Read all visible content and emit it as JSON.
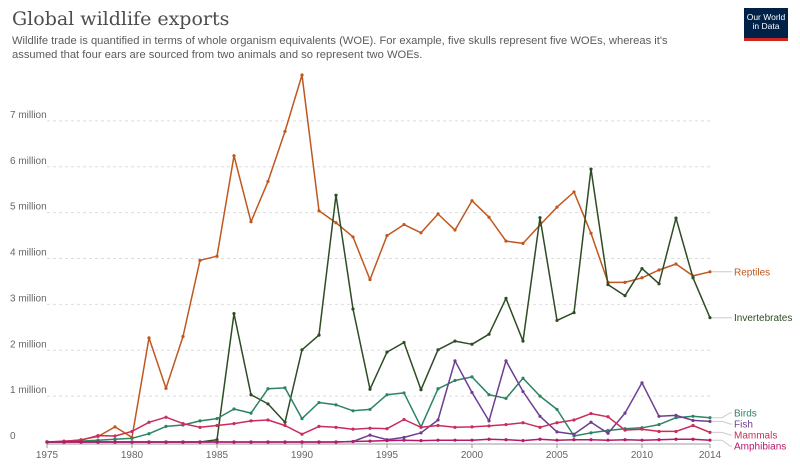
{
  "header": {
    "title": "Global wildlife exports",
    "subtitle": "Wildlife trade is quantified in terms of whole organism equivalents (WOE). For example, five skulls represent five WOEs, whereas it's assumed that four ears are sourced from two animals and so represent two WOEs.",
    "logo_line1": "Our World",
    "logo_line2": "in Data"
  },
  "chart_data": {
    "type": "line",
    "title": "Global wildlife exports",
    "xlabel": "",
    "ylabel": "",
    "xlim": [
      1975,
      2014
    ],
    "ylim": [
      0,
      8000000
    ],
    "x_ticks": [
      1975,
      1980,
      1985,
      1990,
      1995,
      2000,
      2005,
      2010,
      2014
    ],
    "y_ticks": [
      {
        "value": 0,
        "label": "0"
      },
      {
        "value": 1000000,
        "label": "1 million"
      },
      {
        "value": 2000000,
        "label": "2 million"
      },
      {
        "value": 3000000,
        "label": "3 million"
      },
      {
        "value": 4000000,
        "label": "4 million"
      },
      {
        "value": 5000000,
        "label": "5 million"
      },
      {
        "value": 6000000,
        "label": "6 million"
      },
      {
        "value": 7000000,
        "label": "7 million"
      }
    ],
    "grid": "horizontal dashed",
    "legend": "labels at right end of lines",
    "x": [
      1975,
      1976,
      1977,
      1978,
      1979,
      1980,
      1981,
      1982,
      1983,
      1984,
      1985,
      1986,
      1987,
      1988,
      1989,
      1990,
      1991,
      1992,
      1993,
      1994,
      1995,
      1996,
      1997,
      1998,
      1999,
      2000,
      2001,
      2002,
      2003,
      2004,
      2005,
      2006,
      2007,
      2008,
      2009,
      2010,
      2011,
      2012,
      2013,
      2014
    ],
    "series": [
      {
        "name": "Reptiles",
        "color": "#c0571e",
        "values": [
          0,
          10000,
          50000,
          120000,
          330000,
          100000,
          2270000,
          1170000,
          2300000,
          3960000,
          4050000,
          6240000,
          4800000,
          5680000,
          6770000,
          8000000,
          5040000,
          4780000,
          4470000,
          3540000,
          4500000,
          4740000,
          4560000,
          4970000,
          4620000,
          5260000,
          4900000,
          4380000,
          4330000,
          4730000,
          5120000,
          5450000,
          4550000,
          3480000,
          3480000,
          3580000,
          3750000,
          3880000,
          3620000,
          3710000
        ]
      },
      {
        "name": "Invertebrates",
        "color": "#2d4d24",
        "values": [
          0,
          0,
          0,
          0,
          0,
          0,
          0,
          0,
          0,
          0,
          50000,
          2800000,
          1030000,
          830000,
          430000,
          2010000,
          2330000,
          5380000,
          2900000,
          1150000,
          1960000,
          2170000,
          1140000,
          2010000,
          2200000,
          2130000,
          2350000,
          3130000,
          2200000,
          4890000,
          2650000,
          2820000,
          5950000,
          3430000,
          3190000,
          3780000,
          3450000,
          4880000,
          3580000,
          2710000
        ]
      },
      {
        "name": "Birds",
        "color": "#2c8465",
        "values": [
          0,
          0,
          20000,
          40000,
          60000,
          80000,
          180000,
          340000,
          370000,
          460000,
          510000,
          720000,
          630000,
          1160000,
          1180000,
          510000,
          860000,
          810000,
          680000,
          710000,
          1030000,
          1070000,
          330000,
          1160000,
          1340000,
          1420000,
          1030000,
          950000,
          1390000,
          1000000,
          710000,
          130000,
          200000,
          250000,
          290000,
          310000,
          380000,
          530000,
          560000,
          530000
        ]
      },
      {
        "name": "Fish",
        "color": "#6d3e91",
        "values": [
          0,
          0,
          0,
          0,
          0,
          0,
          0,
          0,
          0,
          0,
          0,
          0,
          0,
          0,
          0,
          0,
          0,
          0,
          10000,
          150000,
          50000,
          100000,
          200000,
          480000,
          1770000,
          1080000,
          460000,
          1770000,
          1100000,
          560000,
          220000,
          170000,
          430000,
          190000,
          630000,
          1290000,
          560000,
          580000,
          470000,
          450000
        ]
      },
      {
        "name": "Mammals",
        "color": "#c82d5b",
        "values": [
          0,
          20000,
          40000,
          140000,
          130000,
          230000,
          430000,
          540000,
          400000,
          320000,
          360000,
          400000,
          460000,
          480000,
          360000,
          170000,
          340000,
          320000,
          280000,
          300000,
          290000,
          490000,
          320000,
          360000,
          320000,
          330000,
          350000,
          380000,
          420000,
          320000,
          420000,
          480000,
          620000,
          550000,
          260000,
          280000,
          230000,
          230000,
          360000,
          210000
        ]
      },
      {
        "name": "Amphibians",
        "color": "#b5186e",
        "values": [
          0,
          0,
          0,
          0,
          0,
          0,
          0,
          0,
          0,
          0,
          0,
          0,
          0,
          0,
          0,
          0,
          0,
          0,
          10000,
          20000,
          30000,
          40000,
          30000,
          40000,
          40000,
          40000,
          60000,
          50000,
          30000,
          60000,
          40000,
          50000,
          50000,
          40000,
          50000,
          40000,
          50000,
          60000,
          60000,
          40000
        ]
      }
    ]
  }
}
